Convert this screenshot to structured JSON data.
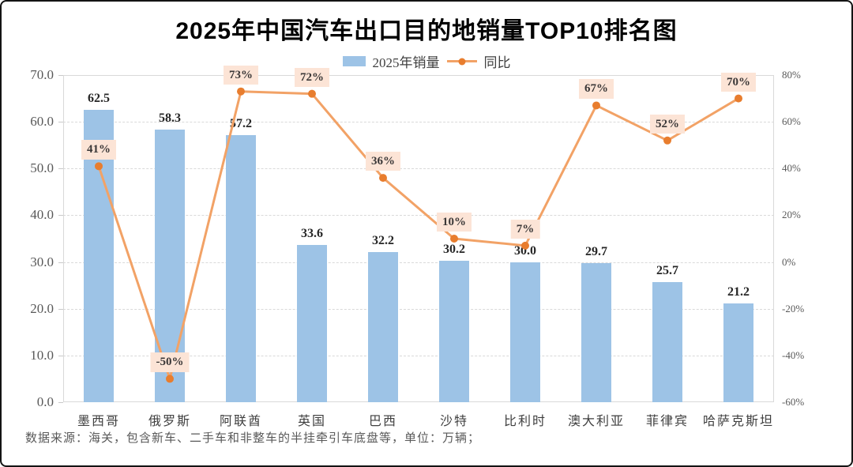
{
  "title": "2025年中国汽车出口目的地销量TOP10排名图",
  "legend": {
    "bar_label": "2025年销量",
    "line_label": "同比"
  },
  "footnote": "数据来源：海关，包含新车、二手车和非整车的半挂牵引车底盘等，单位：万辆；",
  "colors": {
    "bar": "#9DC3E6",
    "line": "#F2A266",
    "marker": "#E87D2E",
    "percent_label_bg": "#FCE4D6",
    "percent_label_text": "#3B3838",
    "bar_label_text": "#262626",
    "axis_text": "#595959",
    "gridline": "#D9D9D9",
    "title_text": "#000000"
  },
  "chart_data": {
    "type": "bar",
    "title": "2025年中国汽车出口目的地销量TOP10排名图",
    "categories": [
      "墨西哥",
      "俄罗斯",
      "阿联酋",
      "英国",
      "巴西",
      "沙特",
      "比利时",
      "澳大利亚",
      "菲律宾",
      "哈萨克斯坦"
    ],
    "series": [
      {
        "name": "2025年销量",
        "type": "bar",
        "axis": "left",
        "values": [
          62.5,
          58.3,
          57.2,
          33.6,
          32.2,
          30.2,
          30.0,
          29.7,
          25.7,
          21.2
        ],
        "labels": [
          "62.5",
          "58.3",
          "57.2",
          "33.6",
          "32.2",
          "30.2",
          "30.0",
          "29.7",
          "25.7",
          "21.2"
        ]
      },
      {
        "name": "同比",
        "type": "line",
        "axis": "right",
        "values": [
          41,
          -50,
          73,
          72,
          36,
          10,
          7,
          67,
          52,
          70
        ],
        "labels": [
          "41%",
          "-50%",
          "73%",
          "72%",
          "36%",
          "10%",
          "7%",
          "67%",
          "52%",
          "70%"
        ]
      }
    ],
    "left_axis": {
      "min": 0,
      "max": 70,
      "step": 10,
      "tick_labels": [
        "0.0",
        "10.0",
        "20.0",
        "30.0",
        "40.0",
        "50.0",
        "60.0",
        "70.0"
      ]
    },
    "right_axis": {
      "min": -60,
      "max": 80,
      "step": 20,
      "tick_labels": [
        "-60%",
        "-40%",
        "-20%",
        "0%",
        "20%",
        "40%",
        "60%",
        "80%"
      ]
    },
    "grid": true,
    "legend_position": "top",
    "unit": "万辆"
  }
}
